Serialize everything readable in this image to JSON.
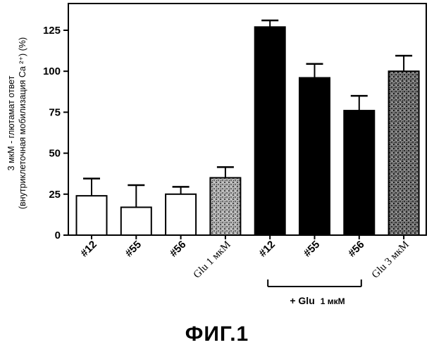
{
  "chart_data": {
    "type": "bar",
    "ylabel_line1": "3 мкМ - глютамат ответ",
    "ylabel_line2": "(внутриклеточная мобилизация Ca ²⁺) (%)",
    "ylim": [
      0,
      140
    ],
    "yticks": [
      0,
      25,
      50,
      75,
      100,
      125
    ],
    "ytick_labels": [
      "0",
      "25",
      "50",
      "75",
      "100",
      "125"
    ],
    "categories": [
      "#12",
      "#55",
      "#56",
      "Glu 1 мкМ",
      "#12",
      "#55",
      "#56",
      "Glu 3 мкМ"
    ],
    "values": [
      24,
      17,
      25,
      35,
      127,
      96,
      76,
      100
    ],
    "errors": [
      10.5,
      13.5,
      4.5,
      6.5,
      4,
      8.5,
      9,
      9.5
    ],
    "fills": [
      "white",
      "white",
      "white",
      "stipple-light",
      "black",
      "black",
      "black",
      "stipple-dark"
    ],
    "bracket": {
      "label_bold": "+ Glu",
      "label_small": "1 мкМ",
      "span": [
        4,
        6
      ]
    },
    "grid": false,
    "legend": "none"
  },
  "figure": {
    "caption": "ФИГ.1"
  },
  "colors": {
    "ink": "#000000",
    "background": "#ffffff",
    "stipple_light": "#9a9a9a",
    "stipple_dark": "#6e6e6e"
  }
}
